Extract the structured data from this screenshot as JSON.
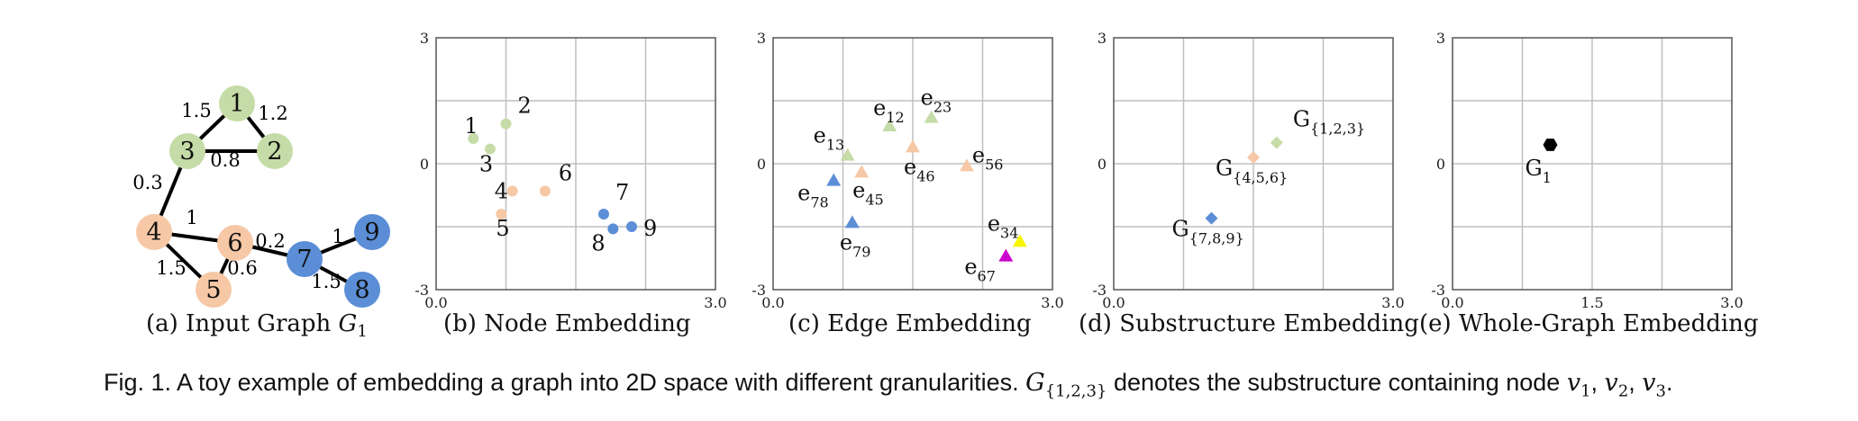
{
  "colors": {
    "green": "#c6dca8",
    "orange": "#f6c8a6",
    "blue": "#5b8ed6",
    "blue_dark": "#3b78c9",
    "yellow": "#f5f500",
    "magenta": "#cc00cc",
    "black": "#000000",
    "grid": "#bfbfbf"
  },
  "input_graph": {
    "caption_prefix": "(a)",
    "caption_text": "Input Graph",
    "caption_math": "G",
    "caption_math_sub": "1",
    "nodes": [
      {
        "id": "1",
        "group": "green"
      },
      {
        "id": "2",
        "group": "green"
      },
      {
        "id": "3",
        "group": "green"
      },
      {
        "id": "4",
        "group": "orange"
      },
      {
        "id": "5",
        "group": "orange"
      },
      {
        "id": "6",
        "group": "orange"
      },
      {
        "id": "7",
        "group": "blue"
      },
      {
        "id": "8",
        "group": "blue"
      },
      {
        "id": "9",
        "group": "blue"
      }
    ],
    "edges": [
      {
        "from": "1",
        "to": "3",
        "weight": "1.5"
      },
      {
        "from": "1",
        "to": "2",
        "weight": "1.2"
      },
      {
        "from": "3",
        "to": "2",
        "weight": "0.8"
      },
      {
        "from": "3",
        "to": "4",
        "weight": "0.3"
      },
      {
        "from": "4",
        "to": "6",
        "weight": "1"
      },
      {
        "from": "4",
        "to": "5",
        "weight": "1.5"
      },
      {
        "from": "6",
        "to": "5",
        "weight": "0.6"
      },
      {
        "from": "6",
        "to": "7",
        "weight": "0.2"
      },
      {
        "from": "7",
        "to": "9",
        "weight": "1"
      },
      {
        "from": "7",
        "to": "8",
        "weight": "1.5"
      }
    ]
  },
  "chart_data": [
    {
      "type": "scatter",
      "caption": "(b)  Node Embedding",
      "xlim": [
        0.0,
        3.0
      ],
      "ylim": [
        -3,
        3
      ],
      "xticks": [
        "0.0",
        "1.5",
        "3.0"
      ],
      "yticks": [
        "-3",
        "0",
        "3"
      ],
      "show_xticks": [
        0,
        2
      ],
      "grid": true,
      "points": [
        {
          "label": "1",
          "sub": "",
          "x": 0.4,
          "y": 0.6,
          "marker": "circle",
          "color": "green"
        },
        {
          "label": "2",
          "sub": "",
          "x": 0.75,
          "y": 0.95,
          "marker": "circle",
          "color": "green"
        },
        {
          "label": "3",
          "sub": "",
          "x": 0.58,
          "y": 0.35,
          "marker": "circle",
          "color": "green"
        },
        {
          "label": "4",
          "sub": "",
          "x": 0.82,
          "y": -0.65,
          "marker": "circle",
          "color": "orange"
        },
        {
          "label": "5",
          "sub": "",
          "x": 0.7,
          "y": -1.2,
          "marker": "circle",
          "color": "orange"
        },
        {
          "label": "6",
          "sub": "",
          "x": 1.17,
          "y": -0.65,
          "marker": "circle",
          "color": "orange"
        },
        {
          "label": "7",
          "sub": "",
          "x": 1.8,
          "y": -1.2,
          "marker": "circle",
          "color": "blue"
        },
        {
          "label": "8",
          "sub": "",
          "x": 1.9,
          "y": -1.55,
          "marker": "circle",
          "color": "blue"
        },
        {
          "label": "9",
          "sub": "",
          "x": 2.1,
          "y": -1.5,
          "marker": "circle",
          "color": "blue"
        }
      ]
    },
    {
      "type": "scatter",
      "caption": "(c)  Edge Embedding",
      "xlim": [
        0.0,
        3.0
      ],
      "ylim": [
        -3,
        3
      ],
      "xticks": [
        "0.0",
        "1.5",
        "3.0"
      ],
      "yticks": [
        "-3",
        "0",
        "3"
      ],
      "show_xticks": [
        0,
        2
      ],
      "grid": true,
      "points": [
        {
          "label": "e",
          "sub": "13",
          "x": 0.8,
          "y": 0.2,
          "marker": "triangle",
          "color": "green"
        },
        {
          "label": "e",
          "sub": "12",
          "x": 1.25,
          "y": 0.9,
          "marker": "triangle",
          "color": "green"
        },
        {
          "label": "e",
          "sub": "23",
          "x": 1.7,
          "y": 1.1,
          "marker": "triangle",
          "color": "green"
        },
        {
          "label": "e",
          "sub": "45",
          "x": 0.95,
          "y": -0.2,
          "marker": "triangle",
          "color": "orange"
        },
        {
          "label": "e",
          "sub": "46",
          "x": 1.5,
          "y": 0.4,
          "marker": "triangle",
          "color": "orange"
        },
        {
          "label": "e",
          "sub": "56",
          "x": 2.08,
          "y": -0.05,
          "marker": "triangle",
          "color": "orange"
        },
        {
          "label": "e",
          "sub": "78",
          "x": 0.65,
          "y": -0.4,
          "marker": "triangle",
          "color": "blue"
        },
        {
          "label": "e",
          "sub": "79",
          "x": 0.85,
          "y": -1.4,
          "marker": "triangle",
          "color": "blue"
        },
        {
          "label": "e",
          "sub": "34",
          "x": 2.65,
          "y": -1.85,
          "marker": "triangle",
          "color": "yellow"
        },
        {
          "label": "e",
          "sub": "67",
          "x": 2.5,
          "y": -2.2,
          "marker": "triangle",
          "color": "magenta"
        }
      ]
    },
    {
      "type": "scatter",
      "caption": "(d)  Substructure Embedding",
      "xlim": [
        0.0,
        3.0
      ],
      "ylim": [
        -3,
        3
      ],
      "xticks": [
        "0.0",
        "1.5",
        "3.0"
      ],
      "yticks": [
        "-3",
        "0",
        "3"
      ],
      "show_xticks": [
        0,
        2
      ],
      "grid": true,
      "points": [
        {
          "label": "G",
          "sub": "{1,2,3}",
          "x": 1.75,
          "y": 0.5,
          "marker": "diamond",
          "color": "green"
        },
        {
          "label": "G",
          "sub": "{4,5,6}",
          "x": 1.5,
          "y": 0.15,
          "marker": "diamond",
          "color": "orange"
        },
        {
          "label": "G",
          "sub": "{7,8,9}",
          "x": 1.05,
          "y": -1.3,
          "marker": "diamond",
          "color": "blue"
        }
      ]
    },
    {
      "type": "scatter",
      "caption": "(e)  Whole-Graph Embedding",
      "xlim": [
        0.0,
        3.0
      ],
      "ylim": [
        -3,
        3
      ],
      "xticks": [
        "0.0",
        "1.5",
        "3.0"
      ],
      "yticks": [
        "-3",
        "0",
        "3"
      ],
      "show_xticks": [
        0,
        1,
        2
      ],
      "grid": true,
      "points": [
        {
          "label": "G",
          "sub": "1",
          "x": 1.05,
          "y": 0.45,
          "marker": "hexagon",
          "color": "black"
        }
      ]
    }
  ],
  "caption": {
    "text_before": "Fig. 1. A toy example of embedding a graph into 2D space with different granularities.",
    "math_G": "G",
    "math_G_sub": "{1,2,3}",
    "text_middle": "denotes the substructure containing node",
    "nodes_math": [
      {
        "name": "v",
        "sub": "1"
      },
      {
        "name": "v",
        "sub": "2"
      },
      {
        "name": "v",
        "sub": "3"
      }
    ]
  }
}
